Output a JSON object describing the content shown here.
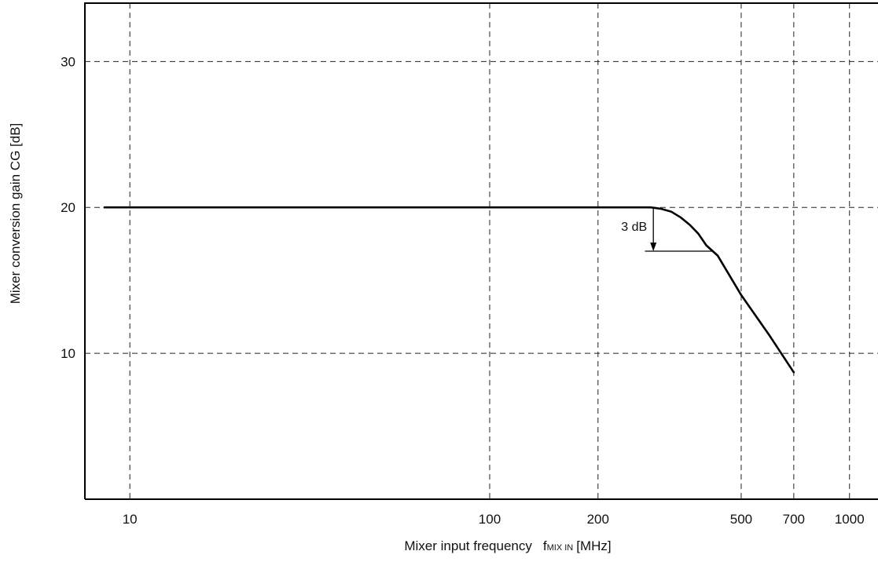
{
  "chart_data": {
    "type": "line",
    "title": "",
    "xlabel": {
      "prefix": "Mixer input frequency",
      "symbol": "f",
      "subscript": "MIX IN",
      "unit": "[MHz]"
    },
    "ylabel": "Mixer conversion gain  CG [dB]",
    "x_scale": "log",
    "xlim": [
      7.5,
      1200
    ],
    "ylim": [
      0,
      34
    ],
    "grid": true,
    "x_ticks": [
      10,
      100,
      200,
      500,
      700,
      1000
    ],
    "x_tick_labels": [
      "10",
      "100",
      "200",
      "500",
      "700",
      "1000"
    ],
    "y_ticks": [
      10,
      20,
      30
    ],
    "y_tick_labels": [
      "10",
      "20",
      "30"
    ],
    "series": [
      {
        "x": [
          8.5,
          20,
          50,
          100,
          200,
          280,
          300,
          320,
          340,
          360,
          380,
          400,
          430,
          500,
          600,
          700
        ],
        "y": [
          20,
          20,
          20,
          20,
          20,
          20,
          19.9,
          19.7,
          19.3,
          18.8,
          18.2,
          17.4,
          16.7,
          14,
          11.2,
          8.7
        ]
      }
    ],
    "annotations": [
      {
        "text": "3 dB",
        "arrow_x": 285,
        "from_y": 20,
        "to_y": 17,
        "baseline_x": [
          270,
          415
        ]
      }
    ]
  }
}
